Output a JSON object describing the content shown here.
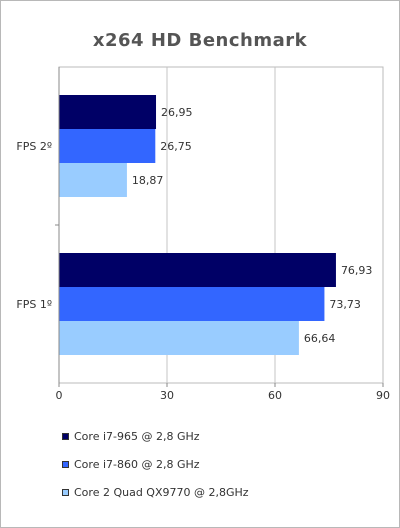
{
  "chart_data": {
    "type": "bar",
    "orientation": "horizontal",
    "title": "x264 HD Benchmark",
    "categories": [
      "FPS 2º",
      "FPS 1º"
    ],
    "series": [
      {
        "name": "Core i7-965 @ 2,8 GHz",
        "color": "#000066",
        "values": [
          26.95,
          76.93
        ],
        "labels": [
          "26,95",
          "76,93"
        ]
      },
      {
        "name": "Core i7-860 @ 2,8 GHz",
        "color": "#3366ff",
        "values": [
          26.75,
          73.73
        ],
        "labels": [
          "26,75",
          "73,73"
        ]
      },
      {
        "name": "Core 2 Quad QX9770 @ 2,8GHz",
        "color": "#99ccff",
        "values": [
          18.87,
          66.64
        ],
        "labels": [
          "18,87",
          "66,64"
        ]
      }
    ],
    "xlim": [
      0,
      90
    ],
    "xticks": [
      "0",
      "30",
      "60",
      "90"
    ],
    "grid": true,
    "legend_position": "bottom"
  }
}
